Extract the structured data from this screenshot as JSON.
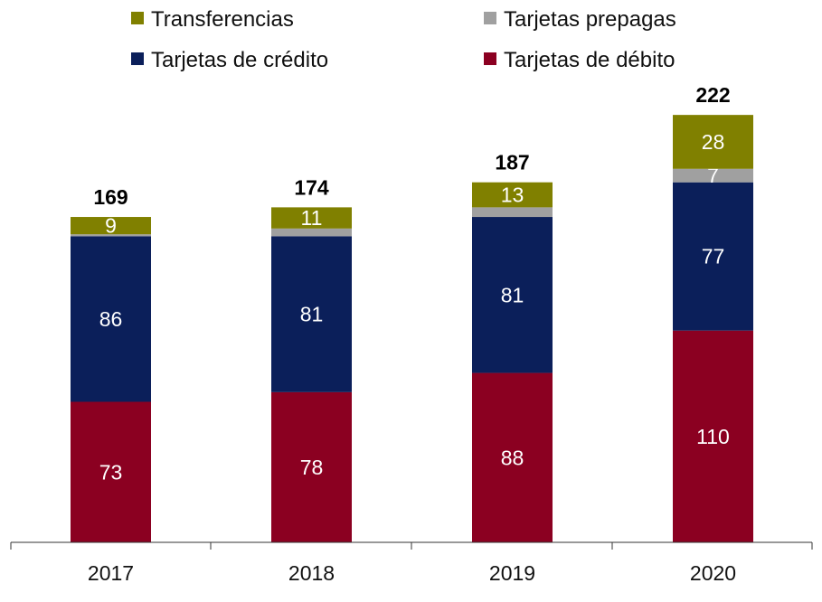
{
  "chart_data": {
    "type": "bar",
    "stacked": true,
    "title": "",
    "xlabel": "",
    "ylabel": "",
    "categories": [
      "2017",
      "2018",
      "2019",
      "2020"
    ],
    "series": [
      {
        "name": "Tarjetas de débito",
        "color": "#8b0021",
        "values": [
          73,
          78,
          88,
          110
        ],
        "labels": [
          "73",
          "78",
          "88",
          "110"
        ]
      },
      {
        "name": "Tarjetas de crédito",
        "color": "#0b1f5a",
        "values": [
          86,
          81,
          81,
          77
        ],
        "labels": [
          "86",
          "81",
          "81",
          "77"
        ]
      },
      {
        "name": "Tarjetas prepagas",
        "color": "#a0a0a0",
        "values": [
          1,
          4,
          5,
          7
        ],
        "labels": [
          "",
          "",
          "",
          "7"
        ]
      },
      {
        "name": "Transferencias",
        "color": "#808000",
        "values": [
          9,
          11,
          13,
          28
        ],
        "labels": [
          "9",
          "11",
          "13",
          "28"
        ]
      }
    ],
    "totals": [
      "169",
      "174",
      "187",
      "222"
    ],
    "ylim": [
      0,
      222
    ],
    "grid": false,
    "legend_position": "top",
    "legend_order": [
      3,
      2,
      1,
      0
    ]
  }
}
